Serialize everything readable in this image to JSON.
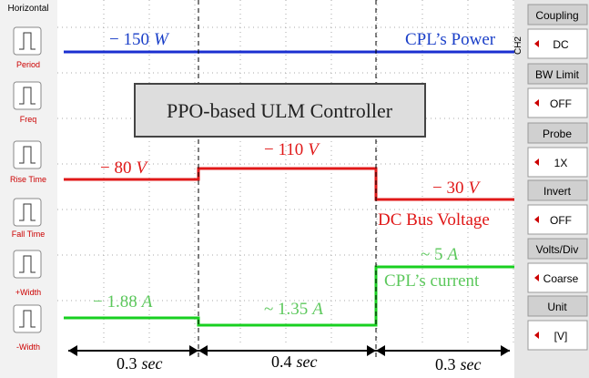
{
  "left_panel": {
    "title": "Horizontal",
    "buttons": [
      "Period",
      "Freq",
      "Rise Time",
      "Fall Time",
      "+Width",
      "-Width"
    ]
  },
  "right_panel": {
    "channel": "CH2",
    "menu": [
      {
        "label": "Coupling",
        "value": "DC"
      },
      {
        "label": "BW Limit",
        "value": "OFF"
      },
      {
        "label": "Probe",
        "value": "1X"
      },
      {
        "label": "Invert",
        "value": "OFF"
      },
      {
        "label": "Volts/Div",
        "value": "Coarse"
      },
      {
        "label": "Unit",
        "value": "[V]"
      }
    ]
  },
  "screen": {
    "title": "PPO-based ULM Controller",
    "annotations": [
      {
        "text": "− 150",
        "unit": "W",
        "color": "blue"
      },
      {
        "text": "CPL’s Power",
        "color": "blue"
      },
      {
        "text": "− 80",
        "unit": "V",
        "color": "red"
      },
      {
        "text": "− 110",
        "unit": "V",
        "color": "red"
      },
      {
        "text": "− 30",
        "unit": "V",
        "color": "red"
      },
      {
        "text": "DC Bus Voltage",
        "color": "red"
      },
      {
        "text": "~ 5",
        "unit": "A",
        "color": "green"
      },
      {
        "text": "CPL’s current",
        "color": "green"
      },
      {
        "text": "− 1.88",
        "unit": "A",
        "color": "green"
      },
      {
        "text": "~ 1.35",
        "unit": "A",
        "color": "green"
      }
    ],
    "durations": [
      {
        "value": "0.3",
        "unit": "sec"
      },
      {
        "value": "0.4",
        "unit": "sec"
      },
      {
        "value": "0.3",
        "unit": "sec"
      }
    ]
  }
}
